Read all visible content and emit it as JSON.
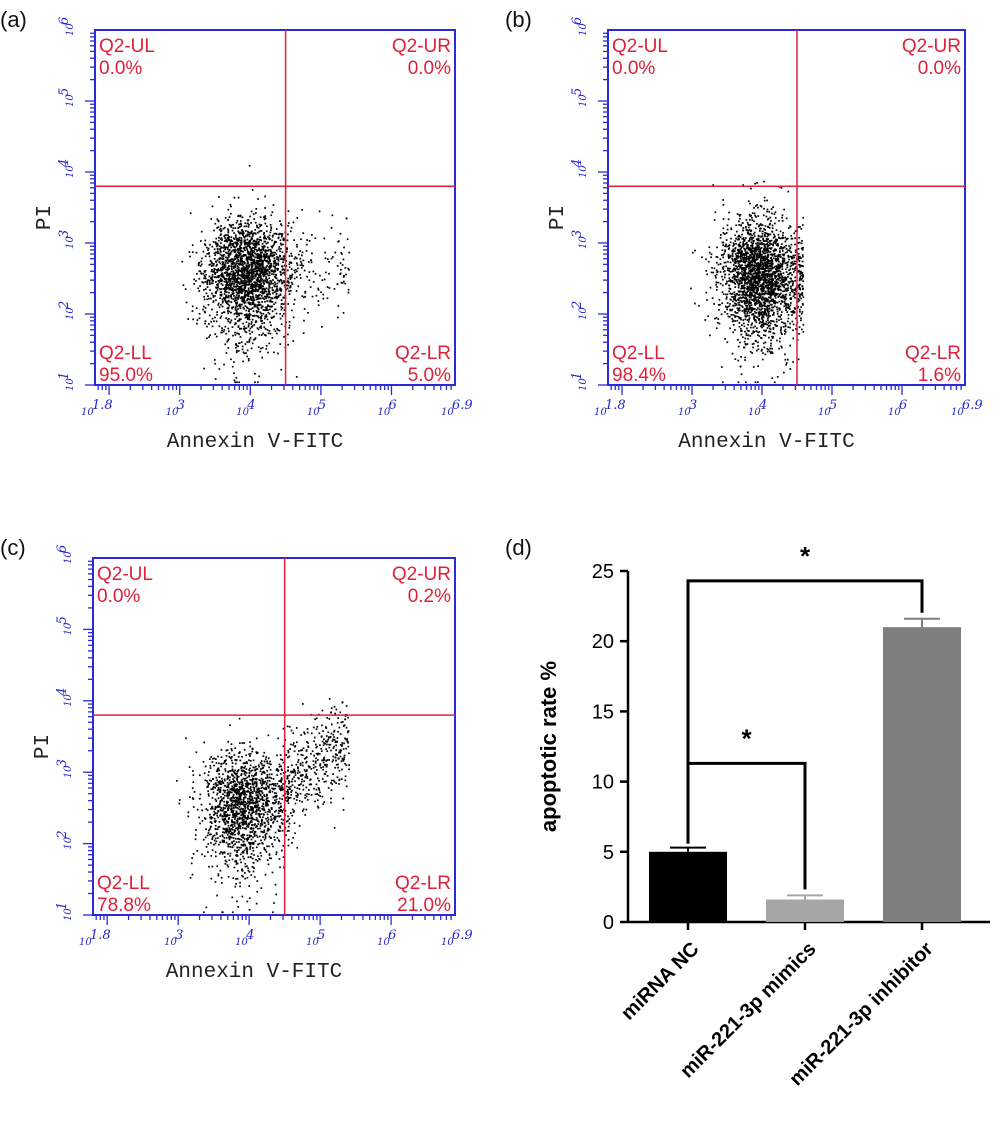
{
  "chart_data": [
    {
      "type": "scatter",
      "panel": "(a)",
      "xlabel": "Annexin V-FITC",
      "ylabel": "PI",
      "xlim_exp": [
        1.8,
        6.9
      ],
      "ylim_exp": [
        1,
        6
      ],
      "x_ticks": [
        {
          "base": "10",
          "exp": "1.8"
        },
        {
          "base": "10",
          "exp": "3"
        },
        {
          "base": "10",
          "exp": "4"
        },
        {
          "base": "10",
          "exp": "5"
        },
        {
          "base": "10",
          "exp": "6"
        },
        {
          "base": "10",
          "exp": "6.9"
        }
      ],
      "y_ticks": [
        {
          "base": "10",
          "exp": "1"
        },
        {
          "base": "10",
          "exp": "2"
        },
        {
          "base": "10",
          "exp": "3"
        },
        {
          "base": "10",
          "exp": "4"
        },
        {
          "base": "10",
          "exp": "5"
        },
        {
          "base": "10",
          "exp": "6"
        }
      ],
      "gate_x_exp": 4.5,
      "gate_y_exp": 3.8,
      "quadrants": {
        "UL": {
          "name": "Q2-UL",
          "value": "0.0%"
        },
        "UR": {
          "name": "Q2-UR",
          "value": "0.0%"
        },
        "LL": {
          "name": "Q2-LL",
          "value": "95.0%"
        },
        "LR": {
          "name": "Q2-LR",
          "value": "5.0%"
        }
      },
      "cluster": {
        "x": 3.95,
        "y": 2.65,
        "sx": 0.3,
        "sy": 0.35,
        "n": 2400,
        "right_tail": 0.05
      }
    },
    {
      "type": "scatter",
      "panel": "(b)",
      "xlabel": "Annexin V-FITC",
      "ylabel": "PI",
      "xlim_exp": [
        1.8,
        6.9
      ],
      "ylim_exp": [
        1,
        6
      ],
      "x_ticks": [
        {
          "base": "10",
          "exp": "1.8"
        },
        {
          "base": "10",
          "exp": "3"
        },
        {
          "base": "10",
          "exp": "4"
        },
        {
          "base": "10",
          "exp": "5"
        },
        {
          "base": "10",
          "exp": "6"
        },
        {
          "base": "10",
          "exp": "6.9"
        }
      ],
      "y_ticks": [
        {
          "base": "10",
          "exp": "1"
        },
        {
          "base": "10",
          "exp": "2"
        },
        {
          "base": "10",
          "exp": "3"
        },
        {
          "base": "10",
          "exp": "4"
        },
        {
          "base": "10",
          "exp": "5"
        },
        {
          "base": "10",
          "exp": "6"
        }
      ],
      "gate_x_exp": 4.5,
      "gate_y_exp": 3.8,
      "quadrants": {
        "UL": {
          "name": "Q2-UL",
          "value": "0.0%"
        },
        "UR": {
          "name": "Q2-UR",
          "value": "0.0%"
        },
        "LL": {
          "name": "Q2-LL",
          "value": "98.4%"
        },
        "LR": {
          "name": "Q2-LR",
          "value": "1.6%"
        }
      },
      "cluster": {
        "x": 3.95,
        "y": 2.6,
        "sx": 0.28,
        "sy": 0.38,
        "n": 2400,
        "right_tail": 0.016
      }
    },
    {
      "type": "scatter",
      "panel": "(c)",
      "xlabel": "Annexin V-FITC",
      "ylabel": "PI",
      "xlim_exp": [
        1.8,
        6.9
      ],
      "ylim_exp": [
        1,
        6
      ],
      "x_ticks": [
        {
          "base": "10",
          "exp": "1.8"
        },
        {
          "base": "10",
          "exp": "3"
        },
        {
          "base": "10",
          "exp": "4"
        },
        {
          "base": "10",
          "exp": "5"
        },
        {
          "base": "10",
          "exp": "6"
        },
        {
          "base": "10",
          "exp": "6.9"
        }
      ],
      "y_ticks": [
        {
          "base": "10",
          "exp": "1"
        },
        {
          "base": "10",
          "exp": "2"
        },
        {
          "base": "10",
          "exp": "3"
        },
        {
          "base": "10",
          "exp": "4"
        },
        {
          "base": "10",
          "exp": "5"
        },
        {
          "base": "10",
          "exp": "6"
        }
      ],
      "gate_x_exp": 4.5,
      "gate_y_exp": 3.8,
      "quadrants": {
        "UL": {
          "name": "Q2-UL",
          "value": "0.0%"
        },
        "UR": {
          "name": "Q2-UR",
          "value": "0.2%"
        },
        "LL": {
          "name": "Q2-LL",
          "value": "78.8%"
        },
        "LR": {
          "name": "Q2-LR",
          "value": "21.0%"
        }
      },
      "cluster": {
        "x": 3.9,
        "y": 2.6,
        "sx": 0.3,
        "sy": 0.36,
        "n": 2000,
        "right_tail": 0.21
      }
    },
    {
      "type": "bar",
      "panel": "(d)",
      "categories": [
        "miRNA NC",
        "miR-221-3p mimics",
        "miR-221-3p inhibitor"
      ],
      "values": [
        5.0,
        1.6,
        21.0
      ],
      "errors": [
        0.3,
        0.3,
        0.6
      ],
      "colors": [
        "#000000",
        "#a6a6a6",
        "#7f7f7f"
      ],
      "ylabel": "apoptotic rate %",
      "ylim": [
        0,
        25
      ],
      "y_ticks": [
        0,
        5,
        10,
        15,
        20,
        25
      ],
      "significance": [
        {
          "from": 0,
          "to": 1,
          "label": "*",
          "level": 11.3
        },
        {
          "from": 0,
          "to": 2,
          "label": "*",
          "level": 24.3
        }
      ]
    }
  ]
}
